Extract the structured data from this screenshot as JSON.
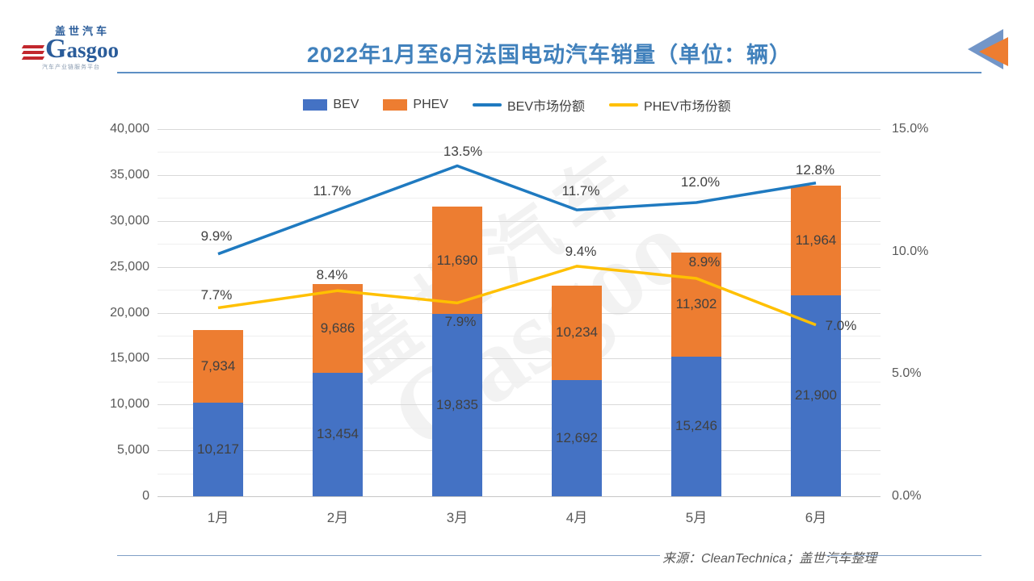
{
  "header": {
    "logo_cn": "盖世汽车",
    "logo_en": "asgoo",
    "logo_tagline": "汽车产业链服务平台",
    "title": "2022年1月至6月法国电动汽车销量（单位：辆）"
  },
  "legend": [
    {
      "label": "BEV",
      "type": "rect",
      "color": "#4472c4"
    },
    {
      "label": "PHEV",
      "type": "rect",
      "color": "#ed7d31"
    },
    {
      "label": "BEV市场份额",
      "type": "line",
      "color": "#1f7ac0"
    },
    {
      "label": "PHEV市场份额",
      "type": "line",
      "color": "#ffc000"
    }
  ],
  "watermark": {
    "cn": "盖世汽车",
    "en": "Gasgoo"
  },
  "footer": {
    "source": "来源：CleanTechnica；盖世汽车整理"
  },
  "chart_data": {
    "type": "bar",
    "subtype": "stacked-bars-with-lines",
    "title": "2022年1月至6月法国电动汽车销量（单位：辆）",
    "categories": [
      "1月",
      "2月",
      "3月",
      "4月",
      "5月",
      "6月"
    ],
    "bar_series": [
      {
        "name": "BEV",
        "color": "#4472c4",
        "values": [
          10217,
          13454,
          19835,
          12692,
          15246,
          21900
        ]
      },
      {
        "name": "PHEV",
        "color": "#ed7d31",
        "values": [
          7934,
          9686,
          11690,
          10234,
          11302,
          11964
        ]
      }
    ],
    "line_series": [
      {
        "name": "BEV市场份额",
        "color": "#1f7ac0",
        "values": [
          9.9,
          11.7,
          13.5,
          11.7,
          12.0,
          12.8
        ]
      },
      {
        "name": "PHEV市场份额",
        "color": "#ffc000",
        "values": [
          7.7,
          8.4,
          7.9,
          9.4,
          8.9,
          7.0
        ]
      }
    ],
    "left_axis": {
      "min": 0,
      "max": 40000,
      "major_step": 5000,
      "minor_step": 2500,
      "ticks": [
        "0",
        "5,000",
        "10,000",
        "15,000",
        "20,000",
        "25,000",
        "30,000",
        "35,000",
        "40,000"
      ]
    },
    "right_axis": {
      "min": 0,
      "max": 15,
      "major_step": 5,
      "ticks": [
        "0.0%",
        "5.0%",
        "10.0%",
        "15.0%"
      ]
    },
    "grid": true,
    "legend_position": "top"
  }
}
